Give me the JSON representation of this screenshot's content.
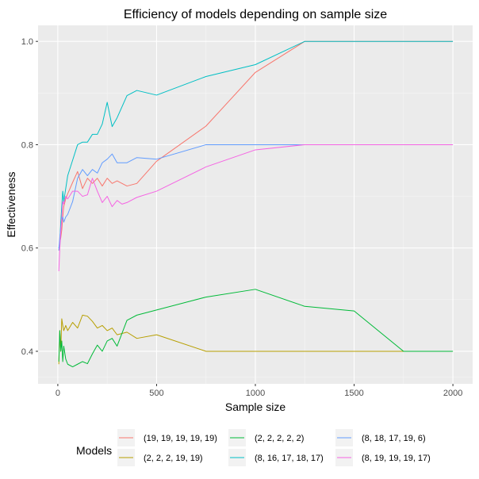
{
  "chart_data": {
    "type": "line",
    "title": "Efficiency of models depending on sample size",
    "xlabel": "Sample size",
    "ylabel": "Effectiveness",
    "xlim": [
      -100,
      2100
    ],
    "ylim": [
      0.337,
      1.031
    ],
    "xticks": [
      0,
      500,
      1000,
      1500,
      2000
    ],
    "xtick_labels": [
      "0",
      "500",
      "1000",
      "1500",
      "2000"
    ],
    "yticks": [
      0.4,
      0.6,
      0.8,
      1.0
    ],
    "ytick_labels": [
      "0.4",
      "0.6",
      "0.8",
      "1.0"
    ],
    "grid": true,
    "background": "#ebebeb",
    "legend_position": "bottom",
    "legend_title": "Models",
    "series": [
      {
        "name": "(19, 19, 19, 19, 19)",
        "color": "#F8766D",
        "points": [
          [
            5,
            0.595
          ],
          [
            10,
            0.61
          ],
          [
            15,
            0.62
          ],
          [
            20,
            0.635
          ],
          [
            25,
            0.66
          ],
          [
            30,
            0.68
          ],
          [
            40,
            0.695
          ],
          [
            50,
            0.705
          ],
          [
            75,
            0.727
          ],
          [
            100,
            0.748
          ],
          [
            125,
            0.715
          ],
          [
            150,
            0.735
          ],
          [
            175,
            0.725
          ],
          [
            200,
            0.735
          ],
          [
            225,
            0.72
          ],
          [
            250,
            0.735
          ],
          [
            275,
            0.725
          ],
          [
            300,
            0.73
          ],
          [
            325,
            0.725
          ],
          [
            350,
            0.72
          ],
          [
            400,
            0.725
          ],
          [
            500,
            0.768
          ],
          [
            750,
            0.836
          ],
          [
            1000,
            0.94
          ],
          [
            1250,
            1.0
          ],
          [
            1500,
            1.0
          ],
          [
            1750,
            1.0
          ],
          [
            2000,
            1.0
          ]
        ]
      },
      {
        "name": "(2, 2, 2, 19, 19)",
        "color": "#B79F00",
        "points": [
          [
            5,
            0.375
          ],
          [
            10,
            0.44
          ],
          [
            15,
            0.4
          ],
          [
            20,
            0.463
          ],
          [
            25,
            0.45
          ],
          [
            30,
            0.44
          ],
          [
            40,
            0.45
          ],
          [
            50,
            0.44
          ],
          [
            75,
            0.456
          ],
          [
            100,
            0.445
          ],
          [
            125,
            0.47
          ],
          [
            150,
            0.468
          ],
          [
            175,
            0.458
          ],
          [
            200,
            0.445
          ],
          [
            225,
            0.45
          ],
          [
            250,
            0.44
          ],
          [
            275,
            0.445
          ],
          [
            300,
            0.432
          ],
          [
            350,
            0.437
          ],
          [
            400,
            0.425
          ],
          [
            500,
            0.432
          ],
          [
            750,
            0.4
          ],
          [
            1000,
            0.4
          ],
          [
            1250,
            0.4
          ],
          [
            1500,
            0.4
          ],
          [
            1750,
            0.4
          ],
          [
            2000,
            0.4
          ]
        ]
      },
      {
        "name": "(2, 2, 2, 2, 2)",
        "color": "#00BA38",
        "points": [
          [
            5,
            0.38
          ],
          [
            10,
            0.44
          ],
          [
            15,
            0.4
          ],
          [
            20,
            0.42
          ],
          [
            25,
            0.38
          ],
          [
            30,
            0.41
          ],
          [
            40,
            0.385
          ],
          [
            50,
            0.375
          ],
          [
            75,
            0.37
          ],
          [
            100,
            0.375
          ],
          [
            125,
            0.38
          ],
          [
            150,
            0.376
          ],
          [
            175,
            0.395
          ],
          [
            200,
            0.412
          ],
          [
            225,
            0.4
          ],
          [
            250,
            0.42
          ],
          [
            275,
            0.425
          ],
          [
            300,
            0.41
          ],
          [
            325,
            0.435
          ],
          [
            350,
            0.46
          ],
          [
            400,
            0.47
          ],
          [
            500,
            0.48
          ],
          [
            750,
            0.505
          ],
          [
            1000,
            0.52
          ],
          [
            1250,
            0.487
          ],
          [
            1500,
            0.478
          ],
          [
            1750,
            0.4
          ],
          [
            2000,
            0.4
          ]
        ]
      },
      {
        "name": "(8, 16, 17, 18, 17)",
        "color": "#00BFC4",
        "points": [
          [
            5,
            0.6
          ],
          [
            10,
            0.61
          ],
          [
            15,
            0.65
          ],
          [
            20,
            0.68
          ],
          [
            25,
            0.71
          ],
          [
            30,
            0.69
          ],
          [
            40,
            0.715
          ],
          [
            50,
            0.74
          ],
          [
            75,
            0.77
          ],
          [
            100,
            0.8
          ],
          [
            125,
            0.805
          ],
          [
            150,
            0.805
          ],
          [
            175,
            0.82
          ],
          [
            200,
            0.82
          ],
          [
            225,
            0.84
          ],
          [
            250,
            0.882
          ],
          [
            275,
            0.835
          ],
          [
            300,
            0.852
          ],
          [
            350,
            0.895
          ],
          [
            400,
            0.905
          ],
          [
            500,
            0.896
          ],
          [
            750,
            0.932
          ],
          [
            1000,
            0.955
          ],
          [
            1250,
            1.0
          ],
          [
            1500,
            1.0
          ],
          [
            1750,
            1.0
          ],
          [
            2000,
            1.0
          ]
        ]
      },
      {
        "name": "(8, 18, 17, 19, 6)",
        "color": "#619CFF",
        "points": [
          [
            5,
            0.595
          ],
          [
            10,
            0.62
          ],
          [
            15,
            0.64
          ],
          [
            20,
            0.655
          ],
          [
            25,
            0.66
          ],
          [
            30,
            0.65
          ],
          [
            40,
            0.66
          ],
          [
            50,
            0.665
          ],
          [
            75,
            0.69
          ],
          [
            100,
            0.735
          ],
          [
            125,
            0.752
          ],
          [
            150,
            0.74
          ],
          [
            175,
            0.752
          ],
          [
            200,
            0.745
          ],
          [
            225,
            0.765
          ],
          [
            250,
            0.772
          ],
          [
            275,
            0.782
          ],
          [
            300,
            0.765
          ],
          [
            350,
            0.765
          ],
          [
            400,
            0.775
          ],
          [
            500,
            0.772
          ],
          [
            750,
            0.8
          ],
          [
            1000,
            0.8
          ],
          [
            1250,
            0.8
          ],
          [
            1500,
            0.8
          ],
          [
            1750,
            0.8
          ],
          [
            2000,
            0.8
          ]
        ]
      },
      {
        "name": "(8, 19, 19, 19, 17)",
        "color": "#F564E3",
        "points": [
          [
            5,
            0.555
          ],
          [
            10,
            0.6
          ],
          [
            15,
            0.63
          ],
          [
            20,
            0.66
          ],
          [
            25,
            0.69
          ],
          [
            30,
            0.685
          ],
          [
            40,
            0.7
          ],
          [
            50,
            0.695
          ],
          [
            75,
            0.71
          ],
          [
            100,
            0.71
          ],
          [
            125,
            0.7
          ],
          [
            150,
            0.703
          ],
          [
            175,
            0.735
          ],
          [
            200,
            0.71
          ],
          [
            225,
            0.688
          ],
          [
            250,
            0.7
          ],
          [
            275,
            0.68
          ],
          [
            300,
            0.692
          ],
          [
            325,
            0.685
          ],
          [
            350,
            0.688
          ],
          [
            400,
            0.698
          ],
          [
            500,
            0.71
          ],
          [
            750,
            0.757
          ],
          [
            1000,
            0.79
          ],
          [
            1250,
            0.8
          ],
          [
            1500,
            0.8
          ],
          [
            1750,
            0.8
          ],
          [
            2000,
            0.8
          ]
        ]
      }
    ]
  }
}
